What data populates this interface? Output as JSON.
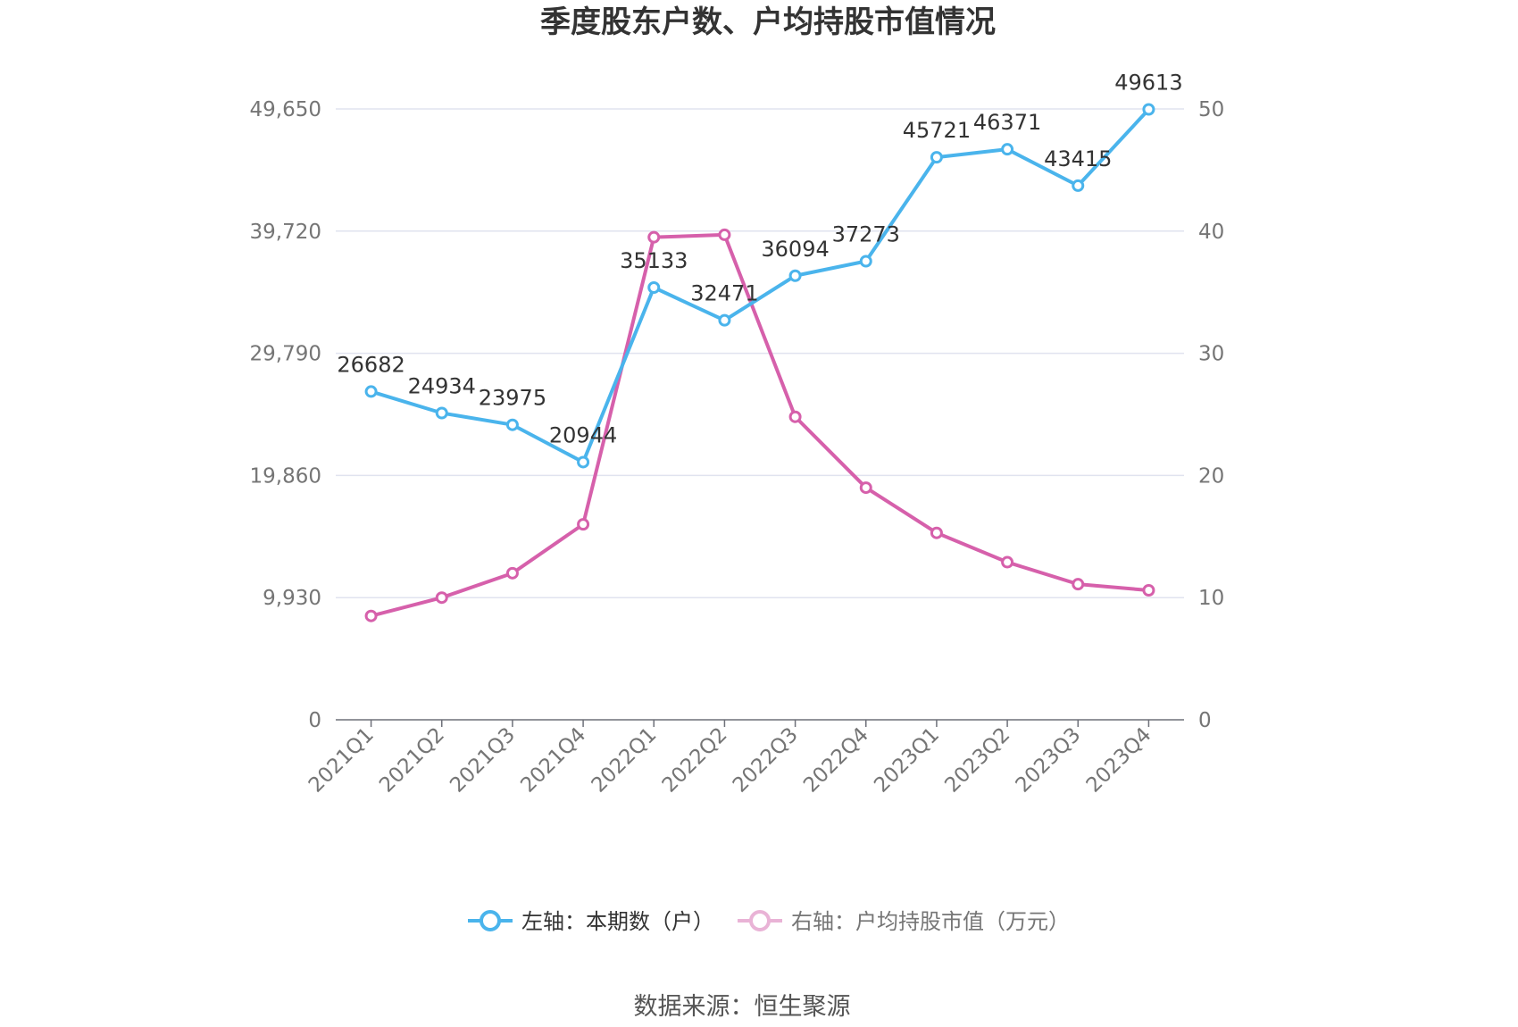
{
  "chart_data": {
    "type": "line",
    "title": "季度股东户数、户均持股市值情况",
    "categories": [
      "2021Q1",
      "2021Q2",
      "2021Q3",
      "2021Q4",
      "2022Q1",
      "2022Q2",
      "2022Q3",
      "2022Q4",
      "2023Q1",
      "2023Q2",
      "2023Q3",
      "2023Q4"
    ],
    "series": [
      {
        "name": "左轴：本期数（户）",
        "axis": "left",
        "color": "#4ab4ec",
        "values": [
          26682,
          24934,
          23975,
          20944,
          35133,
          32471,
          36094,
          37273,
          45721,
          46371,
          43415,
          49613
        ],
        "labels": [
          "26682",
          "24934",
          "23975",
          "20944",
          "35133",
          "32471",
          "36094",
          "37273",
          "45721",
          "46371",
          "43415",
          "49613"
        ]
      },
      {
        "name": "右轴：户均持股市值（万元）",
        "axis": "right",
        "color": "#d660ab",
        "values": [
          8.5,
          10.0,
          12.0,
          16.0,
          39.5,
          39.7,
          24.8,
          19.0,
          15.3,
          12.9,
          11.1,
          10.6
        ]
      }
    ],
    "left_axis": {
      "ylim": [
        0,
        49650
      ],
      "ticks": [
        "0",
        "9,930",
        "19,860",
        "29,790",
        "39,720",
        "49,650"
      ]
    },
    "right_axis": {
      "ylim": [
        0,
        50
      ],
      "ticks": [
        "0",
        "10",
        "20",
        "30",
        "40",
        "50"
      ]
    },
    "grid": true,
    "legend_position": "bottom"
  },
  "source": "数据来源：恒生聚源"
}
